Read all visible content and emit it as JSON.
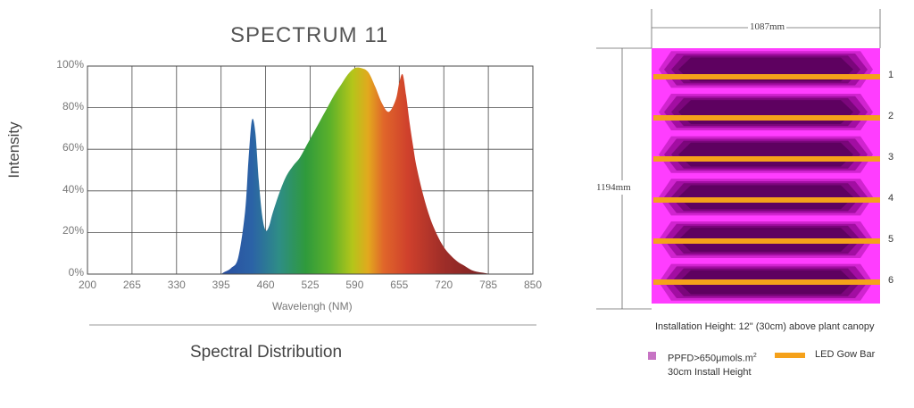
{
  "chart_data": [
    {
      "type": "area",
      "title": "SPECTRUM 11",
      "xlabel": "Wavelengh (NM)",
      "ylabel": "Intensity",
      "caption": "Spectral Distribution",
      "xlim": [
        200,
        850
      ],
      "ylim": [
        0,
        100
      ],
      "x_ticks": [
        "200",
        "265",
        "330",
        "395",
        "460",
        "525",
        "590",
        "655",
        "720",
        "785",
        "850"
      ],
      "y_ticks": [
        "0%",
        "20%",
        "40%",
        "60%",
        "80%",
        "100%"
      ],
      "grid": true,
      "series": [
        {
          "x": [
            395,
            400,
            410,
            420,
            430,
            435,
            440,
            445,
            450,
            455,
            460,
            465,
            470,
            480,
            490,
            500,
            510,
            520,
            530,
            540,
            550,
            560,
            570,
            580,
            590,
            600,
            610,
            620,
            630,
            640,
            650,
            655,
            660,
            665,
            670,
            675,
            680,
            690,
            700,
            710,
            720,
            730,
            740,
            750,
            760,
            770,
            780,
            790
          ],
          "y": [
            0,
            1,
            3,
            8,
            30,
            55,
            74,
            68,
            45,
            28,
            21,
            23,
            29,
            39,
            47,
            52,
            56,
            62,
            68,
            74,
            80,
            86,
            91,
            96,
            99,
            99,
            97,
            90,
            82,
            78,
            84,
            92,
            96,
            86,
            73,
            62,
            52,
            38,
            27,
            19,
            13,
            9,
            6,
            4,
            2,
            1,
            0.5,
            0
          ]
        }
      ]
    },
    {
      "type": "diagram",
      "width_label": "1087mm",
      "height_label": "1194mm",
      "bar_labels": [
        "1",
        "2",
        "3",
        "4",
        "5",
        "6"
      ],
      "install_text": "Installation Height: 12\" (30cm) above plant canopy",
      "legend": {
        "ppfd_label": "PPFD>650μmols.m",
        "ppfd_sup": "2",
        "ppfd_line2": "30cm Install Height",
        "bar_label": "LED Gow Bar"
      },
      "colors": {
        "outer": "#ff3dff",
        "ring1": "#d024cf",
        "ring2": "#a20ea2",
        "ring3": "#7b067b",
        "core": "#5e0160",
        "bar": "#f5a11a",
        "legend_square": "#c774c4"
      }
    }
  ]
}
